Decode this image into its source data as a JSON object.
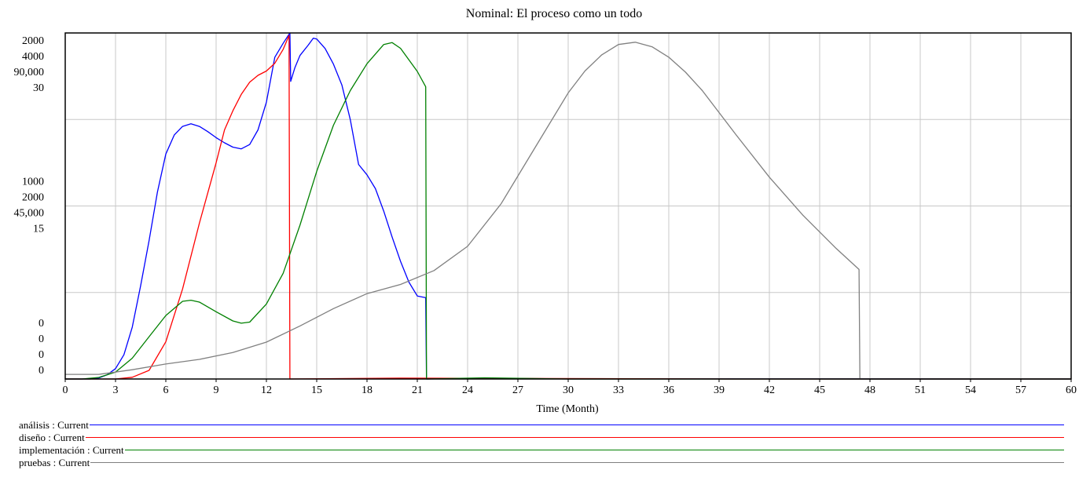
{
  "chart_data": {
    "type": "line",
    "title": "Nominal: El proceso como un todo",
    "xlabel": "Time (Month)",
    "xlim": [
      0,
      60
    ],
    "x_ticks": [
      "0",
      "3",
      "6",
      "9",
      "12",
      "15",
      "18",
      "21",
      "24",
      "27",
      "30",
      "33",
      "36",
      "39",
      "42",
      "45",
      "48",
      "51",
      "54",
      "57",
      "60"
    ],
    "y_tick_groups": [
      {
        "position": "top",
        "labels": [
          "2000",
          "4000",
          "90,000",
          "30"
        ]
      },
      {
        "position": "middle",
        "labels": [
          "1000",
          "2000",
          "45,000",
          "15"
        ]
      },
      {
        "position": "bottom",
        "labels": [
          "0",
          "0",
          "0",
          "0"
        ]
      }
    ],
    "grid": true,
    "series": [
      {
        "name": "análisis : Current",
        "color": "#0000ff",
        "scale_max": 2000,
        "points": [
          [
            0,
            0
          ],
          [
            1.5,
            0
          ],
          [
            2,
            6
          ],
          [
            2.5,
            24
          ],
          [
            3,
            60
          ],
          [
            3.5,
            140
          ],
          [
            4,
            300
          ],
          [
            4.5,
            540
          ],
          [
            5,
            800
          ],
          [
            5.5,
            1080
          ],
          [
            6,
            1300
          ],
          [
            6.5,
            1410
          ],
          [
            7,
            1460
          ],
          [
            7.5,
            1475
          ],
          [
            8,
            1460
          ],
          [
            8.5,
            1430
          ],
          [
            9,
            1395
          ],
          [
            9.5,
            1365
          ],
          [
            10,
            1340
          ],
          [
            10.5,
            1330
          ],
          [
            11,
            1355
          ],
          [
            11.5,
            1440
          ],
          [
            12,
            1600
          ],
          [
            12.5,
            1860
          ],
          [
            13,
            1940
          ],
          [
            13.4,
            2000
          ],
          [
            13.45,
            1720
          ],
          [
            13.7,
            1800
          ],
          [
            14,
            1870
          ],
          [
            14.5,
            1930
          ],
          [
            14.8,
            1970
          ],
          [
            15,
            1965
          ],
          [
            15.5,
            1910
          ],
          [
            16,
            1820
          ],
          [
            16.5,
            1700
          ],
          [
            17,
            1500
          ],
          [
            17.5,
            1240
          ],
          [
            18,
            1180
          ],
          [
            18.5,
            1100
          ],
          [
            19,
            970
          ],
          [
            19.5,
            820
          ],
          [
            20,
            680
          ],
          [
            20.5,
            560
          ],
          [
            21,
            480
          ],
          [
            21.5,
            470
          ],
          [
            21.55,
            0
          ],
          [
            25,
            4
          ],
          [
            30,
            1
          ],
          [
            60,
            0
          ]
        ]
      },
      {
        "name": "diseño : Current",
        "color": "#ff0000",
        "scale_max": 4000,
        "points": [
          [
            0,
            0
          ],
          [
            3,
            0
          ],
          [
            4,
            20
          ],
          [
            5,
            100
          ],
          [
            6,
            430
          ],
          [
            7,
            1040
          ],
          [
            8,
            1800
          ],
          [
            9,
            2500
          ],
          [
            9.5,
            2880
          ],
          [
            10,
            3100
          ],
          [
            10.5,
            3290
          ],
          [
            11,
            3430
          ],
          [
            11.5,
            3510
          ],
          [
            12,
            3560
          ],
          [
            12.5,
            3650
          ],
          [
            13,
            3810
          ],
          [
            13.35,
            3970
          ],
          [
            13.4,
            0
          ],
          [
            20,
            10
          ],
          [
            40,
            0
          ],
          [
            60,
            0
          ]
        ]
      },
      {
        "name": "implementación : Current",
        "color": "#008000",
        "scale_max": 90000,
        "points": [
          [
            0,
            0
          ],
          [
            1,
            0
          ],
          [
            2,
            400
          ],
          [
            3,
            1800
          ],
          [
            4,
            5400
          ],
          [
            5,
            11000
          ],
          [
            6,
            16500
          ],
          [
            7,
            20200
          ],
          [
            7.5,
            20500
          ],
          [
            8,
            20000
          ],
          [
            9,
            17500
          ],
          [
            10,
            15100
          ],
          [
            10.5,
            14500
          ],
          [
            11,
            14800
          ],
          [
            12,
            19500
          ],
          [
            13,
            27500
          ],
          [
            14,
            40000
          ],
          [
            15,
            54000
          ],
          [
            16,
            66000
          ],
          [
            17,
            75000
          ],
          [
            18,
            82000
          ],
          [
            19,
            87000
          ],
          [
            19.5,
            87500
          ],
          [
            20,
            86000
          ],
          [
            21,
            80000
          ],
          [
            21.5,
            76000
          ],
          [
            21.55,
            0
          ],
          [
            25,
            300
          ],
          [
            30,
            0
          ],
          [
            60,
            0
          ]
        ]
      },
      {
        "name": "pruebas : Current",
        "color": "#808080",
        "scale_max": 30,
        "points": [
          [
            0,
            0.4
          ],
          [
            2,
            0.4
          ],
          [
            4,
            0.8
          ],
          [
            6,
            1.3
          ],
          [
            8,
            1.7
          ],
          [
            10,
            2.3
          ],
          [
            12,
            3.2
          ],
          [
            14,
            4.6
          ],
          [
            16,
            6.1
          ],
          [
            18,
            7.4
          ],
          [
            20,
            8.2
          ],
          [
            22,
            9.4
          ],
          [
            24,
            11.5
          ],
          [
            26,
            15.2
          ],
          [
            28,
            20.0
          ],
          [
            30,
            24.8
          ],
          [
            31,
            26.7
          ],
          [
            32,
            28.1
          ],
          [
            33,
            29.0
          ],
          [
            34,
            29.2
          ],
          [
            35,
            28.8
          ],
          [
            36,
            27.9
          ],
          [
            37,
            26.6
          ],
          [
            38,
            25.0
          ],
          [
            40,
            21.2
          ],
          [
            42,
            17.5
          ],
          [
            44,
            14.2
          ],
          [
            46,
            11.3
          ],
          [
            47.35,
            9.5
          ],
          [
            47.4,
            0
          ],
          [
            60,
            0
          ]
        ]
      }
    ]
  }
}
